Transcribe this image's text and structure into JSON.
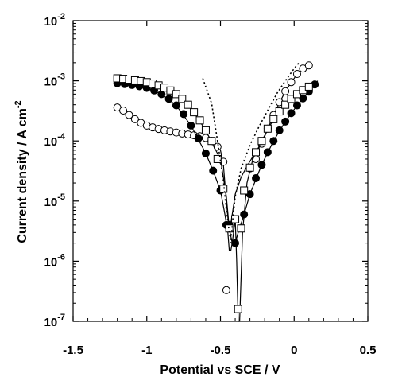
{
  "chart_data": {
    "type": "scatter",
    "title": "",
    "xlabel": "Potential vs SCE / V",
    "ylabel": "Current density / A cm",
    "ylabel_sup": "-2",
    "xlim": [
      -1.5,
      0.5
    ],
    "ylim": [
      1e-07,
      0.01
    ],
    "yscale": "log",
    "grid": false,
    "legend": "none",
    "x_ticks": [
      "-1.5",
      "-1",
      "-0.5",
      "0",
      "0.5"
    ],
    "x_tick_values": [
      -1.5,
      -1.0,
      -0.5,
      0.0,
      0.5
    ],
    "y_ticks": [
      {
        "base": "10",
        "exp": "-7",
        "value": 1e-07
      },
      {
        "base": "10",
        "exp": "-6",
        "value": 1e-06
      },
      {
        "base": "10",
        "exp": "-5",
        "value": 1e-05
      },
      {
        "base": "10",
        "exp": "-4",
        "value": 0.0001
      },
      {
        "base": "10",
        "exp": "-3",
        "value": 0.001
      },
      {
        "base": "10",
        "exp": "-2",
        "value": 0.01
      }
    ],
    "series": [
      {
        "marker": "open-circle",
        "line": "solid",
        "color": "#000000",
        "x": [
          -1.2,
          -1.16,
          -1.12,
          -1.08,
          -1.04,
          -1.0,
          -0.96,
          -0.92,
          -0.88,
          -0.84,
          -0.8,
          -0.76,
          -0.72,
          -0.68,
          -0.64,
          -0.6,
          -0.56,
          -0.52,
          -0.48,
          -0.46,
          -0.3,
          -0.26,
          -0.22,
          -0.18,
          -0.14,
          -0.1,
          -0.06,
          -0.02,
          0.02,
          0.06,
          0.1
        ],
        "y": [
          0.00036,
          0.00032,
          0.00027,
          0.00023,
          0.0002,
          0.00018,
          0.000168,
          0.000158,
          0.00015,
          0.000144,
          0.000138,
          0.000133,
          0.000128,
          0.000124,
          0.00012,
          0.000112,
          0.0001,
          8e-05,
          4.5e-05,
          3.3e-07,
          3.5e-05,
          5e-05,
          9e-05,
          0.00016,
          0.00027,
          0.00044,
          0.00067,
          0.00095,
          0.0013,
          0.0016,
          0.0018
        ],
        "curve_x": [
          -1.2,
          -1.0,
          -0.8,
          -0.7,
          -0.6,
          -0.55,
          -0.5,
          -0.48,
          -0.46,
          -0.44,
          -0.42,
          -0.4,
          -0.36,
          -0.32,
          -0.28,
          -0.22,
          -0.14,
          -0.06,
          0.02,
          0.1
        ],
        "curve_y": [
          0.00036,
          0.00018,
          0.000138,
          0.000126,
          0.000112,
          0.0001,
          7e-05,
          4e-05,
          1e-05,
          3e-06,
          6e-06,
          1.3e-05,
          2.5e-05,
          3.8e-05,
          5.5e-05,
          9e-05,
          0.00027,
          0.00067,
          0.0013,
          0.0018
        ]
      },
      {
        "marker": "filled-circle",
        "line": "solid",
        "color": "#000000",
        "x": [
          -1.2,
          -1.15,
          -1.1,
          -1.05,
          -1.0,
          -0.95,
          -0.9,
          -0.85,
          -0.8,
          -0.75,
          -0.7,
          -0.65,
          -0.6,
          -0.55,
          -0.5,
          -0.46,
          -0.44,
          -0.4,
          -0.34,
          -0.3,
          -0.26,
          -0.22,
          -0.18,
          -0.14,
          -0.1,
          -0.06,
          -0.02,
          0.02,
          0.06,
          0.1,
          0.14
        ],
        "y": [
          0.00091,
          0.00088,
          0.00085,
          0.00081,
          0.00076,
          0.00069,
          0.0006,
          0.0005,
          0.00039,
          0.00028,
          0.00018,
          0.00011,
          6.2e-05,
          3.2e-05,
          1.5e-05,
          4e-06,
          4e-06,
          2e-06,
          6e-06,
          1.3e-05,
          2.4e-05,
          4e-05,
          6.5e-05,
          0.0001,
          0.00015,
          0.00021,
          0.00029,
          0.00039,
          0.00051,
          0.00066,
          0.00087
        ],
        "curve_x": [
          -1.2,
          -1.0,
          -0.9,
          -0.8,
          -0.7,
          -0.6,
          -0.55,
          -0.5,
          -0.47,
          -0.45,
          -0.44,
          -0.43,
          -0.42,
          -0.4,
          -0.38,
          -0.34,
          -0.3,
          -0.22,
          -0.14,
          -0.06,
          0.02,
          0.1,
          0.16
        ],
        "curve_y": [
          0.00091,
          0.00076,
          0.0006,
          0.00039,
          0.00018,
          6.2e-05,
          3.2e-05,
          1.5e-05,
          6e-06,
          3e-06,
          1.5e-06,
          1.5e-06,
          2e-06,
          2e-06,
          3e-06,
          6e-06,
          1.3e-05,
          4e-05,
          0.0001,
          0.00021,
          0.00039,
          0.00066,
          0.001
        ]
      },
      {
        "marker": "open-square",
        "line": "solid",
        "color": "#000000",
        "x": [
          -1.2,
          -1.16,
          -1.12,
          -1.08,
          -1.04,
          -1.0,
          -0.96,
          -0.92,
          -0.88,
          -0.84,
          -0.8,
          -0.76,
          -0.72,
          -0.68,
          -0.64,
          -0.6,
          -0.56,
          -0.52,
          -0.48,
          -0.44,
          -0.4,
          -0.38,
          -0.36,
          -0.34,
          -0.3,
          -0.26,
          -0.22,
          -0.18,
          -0.14,
          -0.1,
          -0.06,
          -0.02,
          0.02,
          0.06,
          0.1
        ],
        "y": [
          0.0011,
          0.00108,
          0.00105,
          0.00102,
          0.00099,
          0.00095,
          0.0009,
          0.00084,
          0.00077,
          0.00069,
          0.0006,
          0.0005,
          0.0004,
          0.0003,
          0.00022,
          0.00015,
          0.0001,
          5e-05,
          1.6e-05,
          3.5e-06,
          5e-06,
          1.6e-07,
          3.5e-06,
          1.5e-05,
          3.6e-05,
          6.5e-05,
          0.0001,
          0.00016,
          0.00023,
          0.00031,
          0.0004,
          0.0005,
          0.0006,
          0.0007,
          0.0008
        ],
        "curve_x": [
          -1.2,
          -1.0,
          -0.9,
          -0.8,
          -0.7,
          -0.6,
          -0.55,
          -0.5,
          -0.46,
          -0.44,
          -0.42,
          -0.4,
          -0.39,
          -0.38,
          -0.37,
          -0.35,
          -0.32,
          -0.28,
          -0.22,
          -0.14,
          -0.06,
          0.02,
          0.1,
          0.16
        ],
        "curve_y": [
          0.0011,
          0.00095,
          0.00081,
          0.0006,
          0.00035,
          0.00015,
          8.5e-05,
          5e-05,
          1.2e-05,
          3.5e-06,
          2e-06,
          5e-06,
          1e-06,
          1e-07,
          1e-07,
          3e-06,
          2e-05,
          5e-05,
          0.0001,
          0.00023,
          0.0004,
          0.0006,
          0.0008,
          0.00095
        ]
      },
      {
        "marker": "none",
        "line": "dotted",
        "color": "#000000",
        "x": [
          -0.62,
          -0.56,
          -0.52,
          -0.48,
          -0.46,
          -0.44,
          -0.43,
          -0.42,
          -0.4,
          -0.36,
          -0.3,
          -0.24,
          -0.18,
          -0.12,
          -0.06,
          0.0,
          0.04
        ],
        "y": [
          0.0011,
          0.00042,
          0.0001,
          2.2e-05,
          7e-06,
          3e-06,
          2e-06,
          4e-06,
          1.2e-05,
          3.5e-05,
          8.5e-05,
          0.00017,
          0.00032,
          0.0006,
          0.001,
          0.0016,
          0.0021
        ]
      }
    ]
  }
}
